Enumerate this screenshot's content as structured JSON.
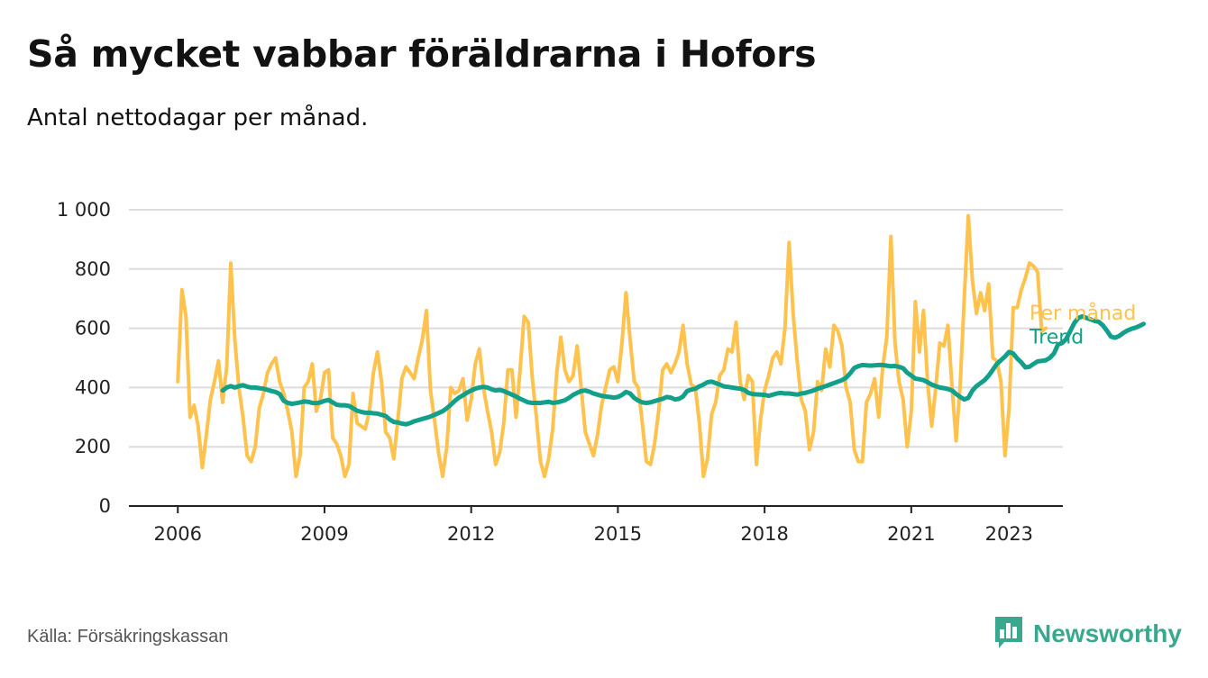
{
  "header": {
    "title": "Så mycket vabbar föräldrarna i Hofors",
    "subtitle": "Antal nettodagar per månad."
  },
  "footer": {
    "source": "Källa: Försäkringskassan",
    "brand": "Newsworthy",
    "brand_icon": "newsworthy-logo-icon"
  },
  "colors": {
    "per_month": "#FFC24D",
    "trend": "#12A08A",
    "grid": "#dcdcdc",
    "axis": "#222222",
    "brand": "#3aa88e"
  },
  "chart_data": {
    "type": "line",
    "title": "Så mycket vabbar föräldrarna i Hofors",
    "subtitle": "Antal nettodagar per månad.",
    "xlabel": "",
    "ylabel": "",
    "xlim": [
      2005.0,
      2024.1
    ],
    "ylim": [
      0,
      1000
    ],
    "x_ticks": [
      2006,
      2009,
      2012,
      2015,
      2018,
      2021,
      2023
    ],
    "y_ticks": [
      0,
      200,
      400,
      600,
      800,
      1000
    ],
    "y_tick_labels": [
      "0",
      "200",
      "400",
      "600",
      "800",
      "1 000"
    ],
    "grid": true,
    "legend": "inline labels at right end of lines",
    "series": [
      {
        "name": "Per månad",
        "color": "#FFC24D",
        "x_start": "2006-01",
        "x_step": "month",
        "values": [
          420,
          730,
          640,
          300,
          340,
          270,
          130,
          240,
          360,
          420,
          490,
          350,
          470,
          820,
          560,
          400,
          300,
          170,
          150,
          200,
          330,
          380,
          450,
          480,
          500,
          420,
          380,
          320,
          250,
          100,
          170,
          400,
          420,
          480,
          320,
          360,
          450,
          460,
          230,
          210,
          170,
          100,
          140,
          380,
          280,
          270,
          260,
          320,
          450,
          520,
          420,
          250,
          230,
          160,
          290,
          430,
          470,
          450,
          430,
          500,
          560,
          660,
          390,
          290,
          180,
          100,
          200,
          400,
          380,
          390,
          430,
          290,
          360,
          480,
          530,
          400,
          320,
          250,
          140,
          180,
          280,
          460,
          460,
          300,
          460,
          640,
          620,
          430,
          300,
          150,
          100,
          160,
          260,
          450,
          570,
          460,
          420,
          440,
          540,
          400,
          250,
          210,
          170,
          240,
          340,
          400,
          460,
          470,
          420,
          550,
          720,
          560,
          420,
          400,
          280,
          150,
          140,
          210,
          320,
          460,
          480,
          450,
          480,
          520,
          610,
          480,
          410,
          400,
          280,
          100,
          160,
          310,
          350,
          440,
          460,
          530,
          520,
          620,
          420,
          360,
          440,
          420,
          140,
          290,
          390,
          440,
          500,
          520,
          480,
          600,
          890,
          650,
          490,
          360,
          320,
          190,
          250,
          420,
          390,
          530,
          470,
          610,
          590,
          540,
          400,
          350,
          190,
          150,
          150,
          350,
          380,
          430,
          300,
          470,
          570,
          910,
          550,
          420,
          360,
          200,
          320,
          690,
          520,
          660,
          420,
          270,
          400,
          550,
          540,
          610,
          400,
          220,
          410,
          700,
          980,
          760,
          650,
          720,
          660,
          750,
          500,
          490,
          420,
          170,
          330,
          670,
          670,
          730,
          770,
          820,
          810,
          790,
          590,
          600
        ]
      },
      {
        "name": "Trend",
        "color": "#12A08A",
        "x_start": "2006-12",
        "x_step": "month",
        "values": [
          390,
          400,
          405,
          400,
          405,
          408,
          403,
          400,
          400,
          398,
          396,
          392,
          388,
          385,
          378,
          355,
          348,
          345,
          347,
          350,
          353,
          352,
          348,
          347,
          350,
          355,
          358,
          350,
          342,
          340,
          340,
          338,
          330,
          322,
          318,
          315,
          315,
          313,
          312,
          308,
          304,
          292,
          284,
          282,
          278,
          276,
          280,
          286,
          290,
          294,
          298,
          302,
          308,
          314,
          320,
          330,
          342,
          355,
          366,
          374,
          383,
          390,
          396,
          400,
          402,
          400,
          394,
          390,
          392,
          388,
          382,
          376,
          370,
          362,
          356,
          350,
          348,
          348,
          348,
          350,
          352,
          348,
          350,
          353,
          357,
          365,
          375,
          382,
          388,
          390,
          386,
          380,
          376,
          372,
          370,
          368,
          366,
          368,
          375,
          385,
          380,
          365,
          356,
          350,
          348,
          350,
          354,
          358,
          362,
          368,
          366,
          360,
          362,
          370,
          388,
          393,
          396,
          404,
          410,
          418,
          420,
          415,
          410,
          404,
          402,
          400,
          398,
          396,
          392,
          382,
          378,
          377,
          376,
          375,
          372,
          376,
          380,
          382,
          380,
          380,
          378,
          376,
          380,
          382,
          386,
          390,
          396,
          400,
          405,
          410,
          415,
          420,
          425,
          433,
          448,
          466,
          472,
          476,
          475,
          474,
          475,
          476,
          476,
          474,
          472,
          473,
          470,
          465,
          450,
          440,
          430,
          428,
          425,
          418,
          410,
          405,
          400,
          398,
          395,
          390,
          378,
          368,
          360,
          365,
          390,
          405,
          415,
          425,
          440,
          460,
          480,
          492,
          505,
          520,
          515,
          498,
          485,
          468,
          470,
          480,
          488,
          490,
          492,
          500,
          515,
          545,
          550,
          563,
          590,
          618,
          635,
          640,
          635,
          630,
          625,
          622,
          610,
          592,
          572,
          568,
          574,
          584,
          592,
          598,
          602,
          608,
          615
        ]
      }
    ]
  }
}
